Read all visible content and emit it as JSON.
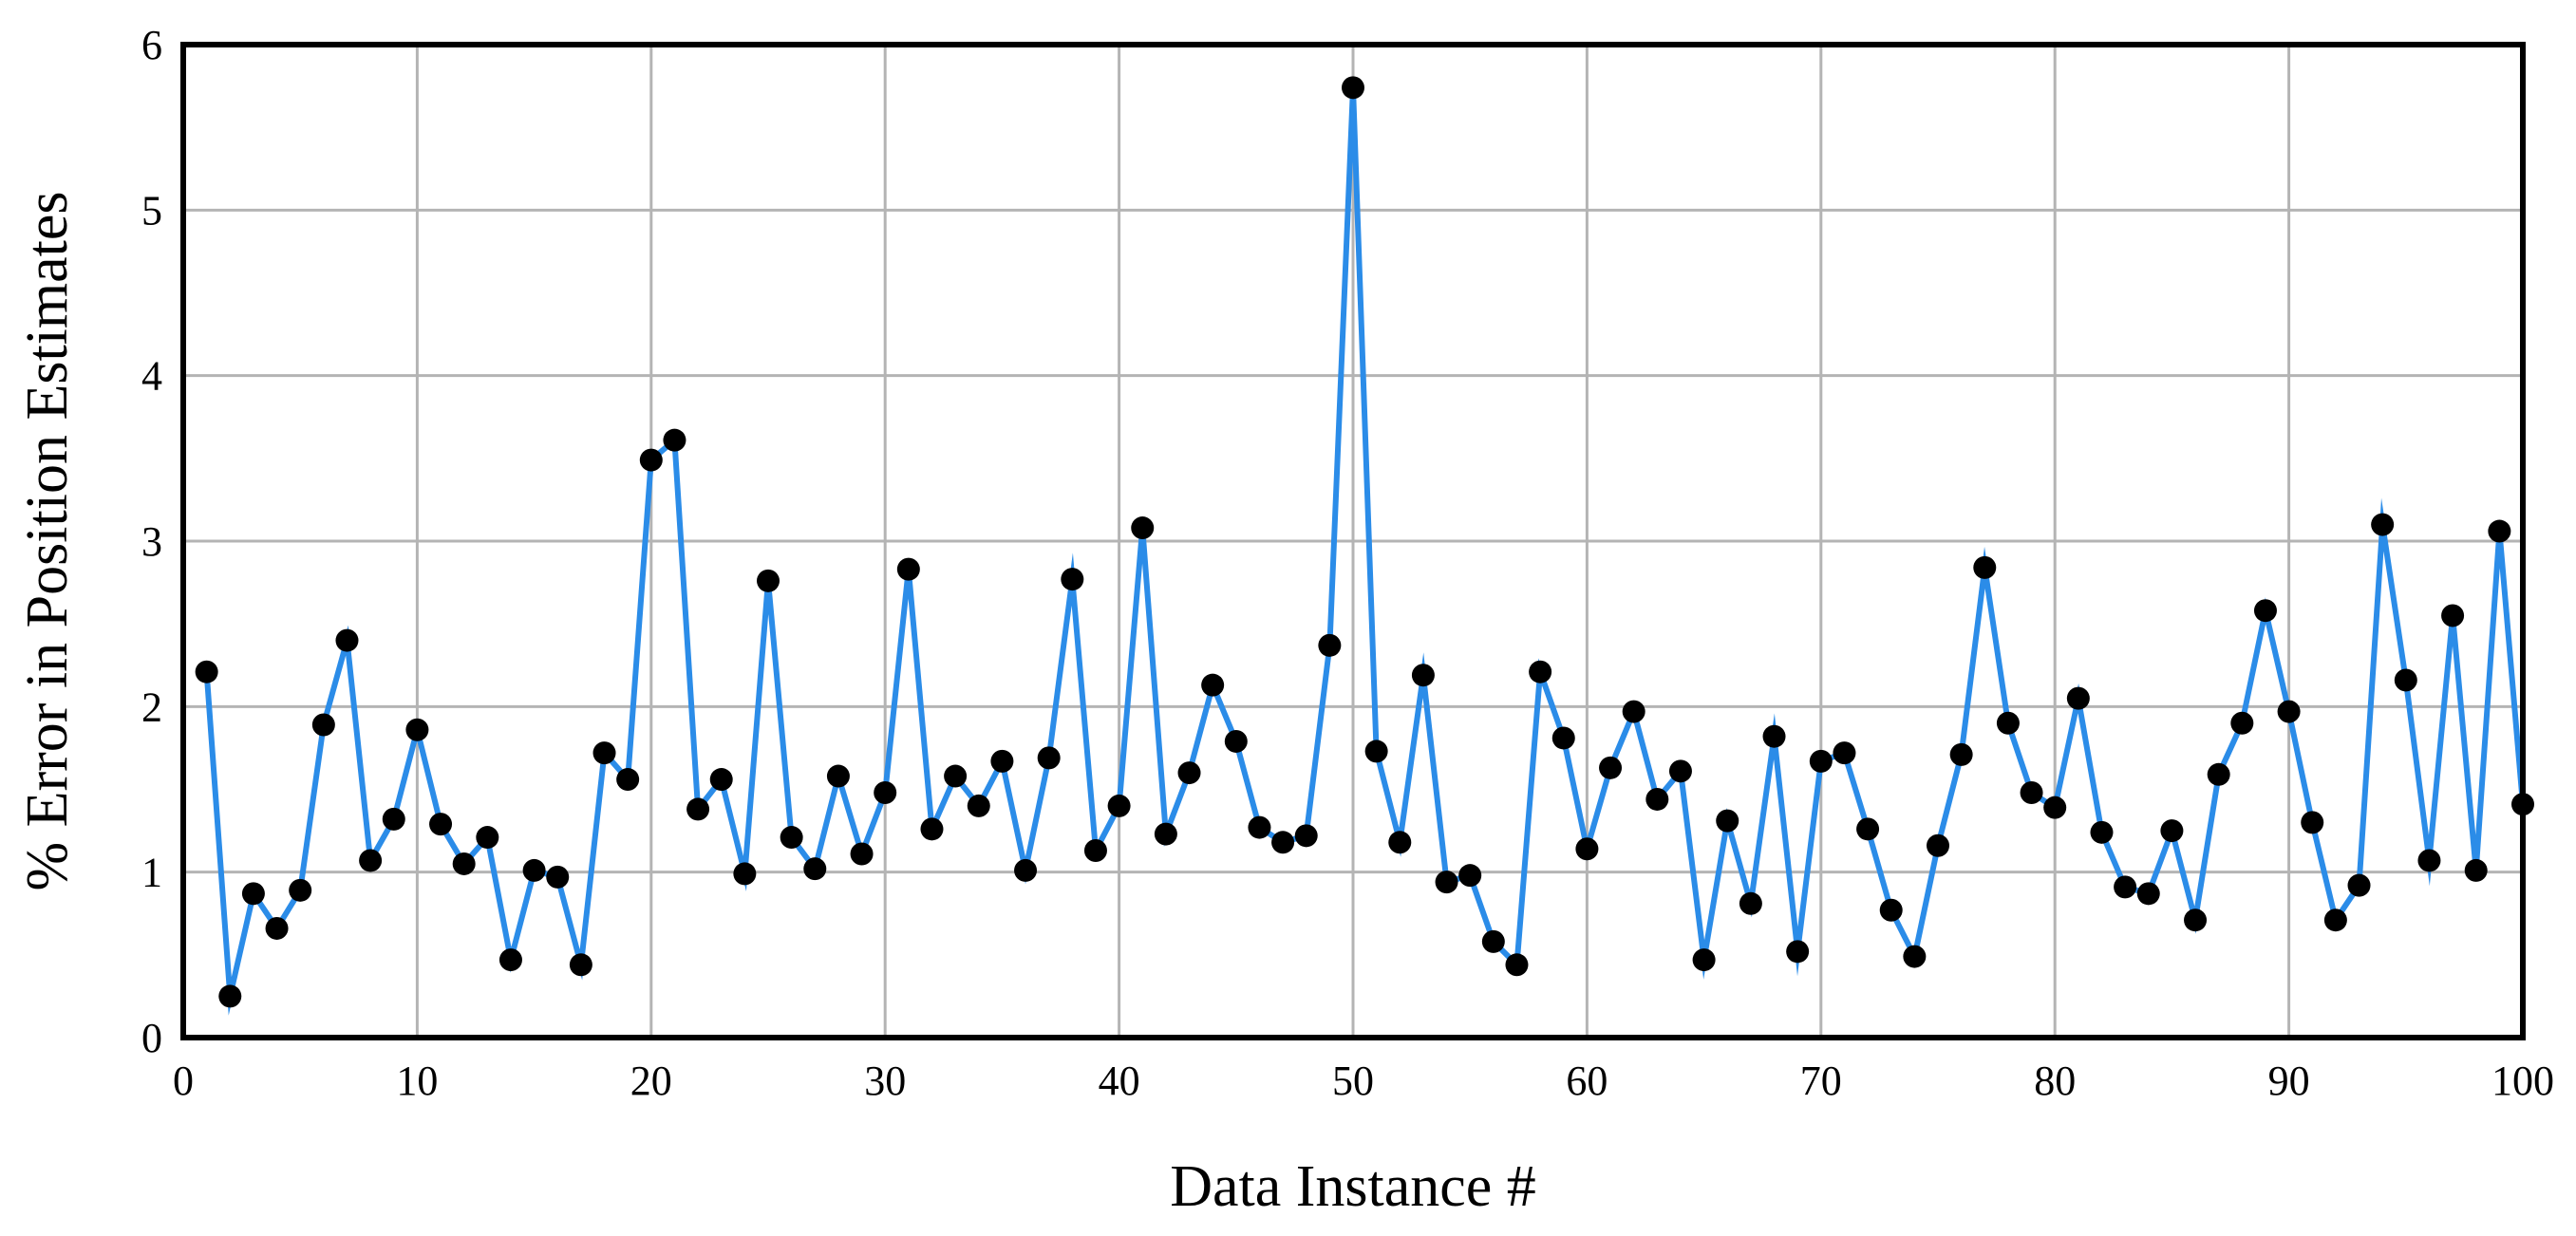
{
  "chart_data": {
    "type": "line",
    "xlabel": "Data Instance #",
    "ylabel": "% Error in Position Estimates",
    "xlim": [
      0,
      100
    ],
    "ylim": [
      0,
      6
    ],
    "xticks": [
      0,
      10,
      20,
      30,
      40,
      50,
      60,
      70,
      80,
      90,
      100
    ],
    "yticks": [
      0,
      1,
      2,
      3,
      4,
      5,
      6
    ],
    "grid": true,
    "series": [
      {
        "color": "#2b8ce8",
        "marker_color": "#000000",
        "x": [
          1,
          2,
          3,
          4,
          5,
          6,
          7,
          8,
          9,
          10,
          11,
          12,
          13,
          14,
          15,
          16,
          17,
          18,
          19,
          20,
          21,
          22,
          23,
          24,
          25,
          26,
          27,
          28,
          29,
          30,
          31,
          32,
          33,
          34,
          35,
          36,
          37,
          38,
          39,
          40,
          41,
          42,
          43,
          44,
          45,
          46,
          47,
          48,
          49,
          50,
          51,
          52,
          53,
          54,
          55,
          56,
          57,
          58,
          59,
          60,
          61,
          62,
          63,
          64,
          65,
          66,
          67,
          68,
          69,
          70,
          71,
          72,
          73,
          74,
          75,
          76,
          77,
          78,
          79,
          80,
          81,
          82,
          83,
          84,
          85,
          86,
          87,
          88,
          89,
          90,
          91,
          92,
          93,
          94,
          95,
          96,
          97,
          98,
          99,
          100
        ],
        "y": [
          2.21,
          0.25,
          0.87,
          0.66,
          0.89,
          1.89,
          2.4,
          1.07,
          1.32,
          1.86,
          1.29,
          1.05,
          1.21,
          0.47,
          1.01,
          0.97,
          0.44,
          1.72,
          1.56,
          3.49,
          3.61,
          1.38,
          1.56,
          0.99,
          2.76,
          1.21,
          1.02,
          1.58,
          1.11,
          1.48,
          2.83,
          1.26,
          1.58,
          1.4,
          1.67,
          1.01,
          1.69,
          2.77,
          1.13,
          1.4,
          3.08,
          1.23,
          1.6,
          2.13,
          1.79,
          1.27,
          1.18,
          1.22,
          2.37,
          5.74,
          1.73,
          1.18,
          2.19,
          0.94,
          0.98,
          0.58,
          0.44,
          2.21,
          1.81,
          1.14,
          1.63,
          1.97,
          1.44,
          1.61,
          0.47,
          1.31,
          0.81,
          1.82,
          0.52,
          1.67,
          1.72,
          1.26,
          0.77,
          0.49,
          1.16,
          1.71,
          2.84,
          1.9,
          1.48,
          1.39,
          2.05,
          1.24,
          0.91,
          0.87,
          1.25,
          0.71,
          1.59,
          1.9,
          2.58,
          1.97,
          1.3,
          0.71,
          0.92,
          3.1,
          2.16,
          1.07,
          2.55,
          1.01,
          3.06,
          1.41
        ]
      }
    ]
  }
}
